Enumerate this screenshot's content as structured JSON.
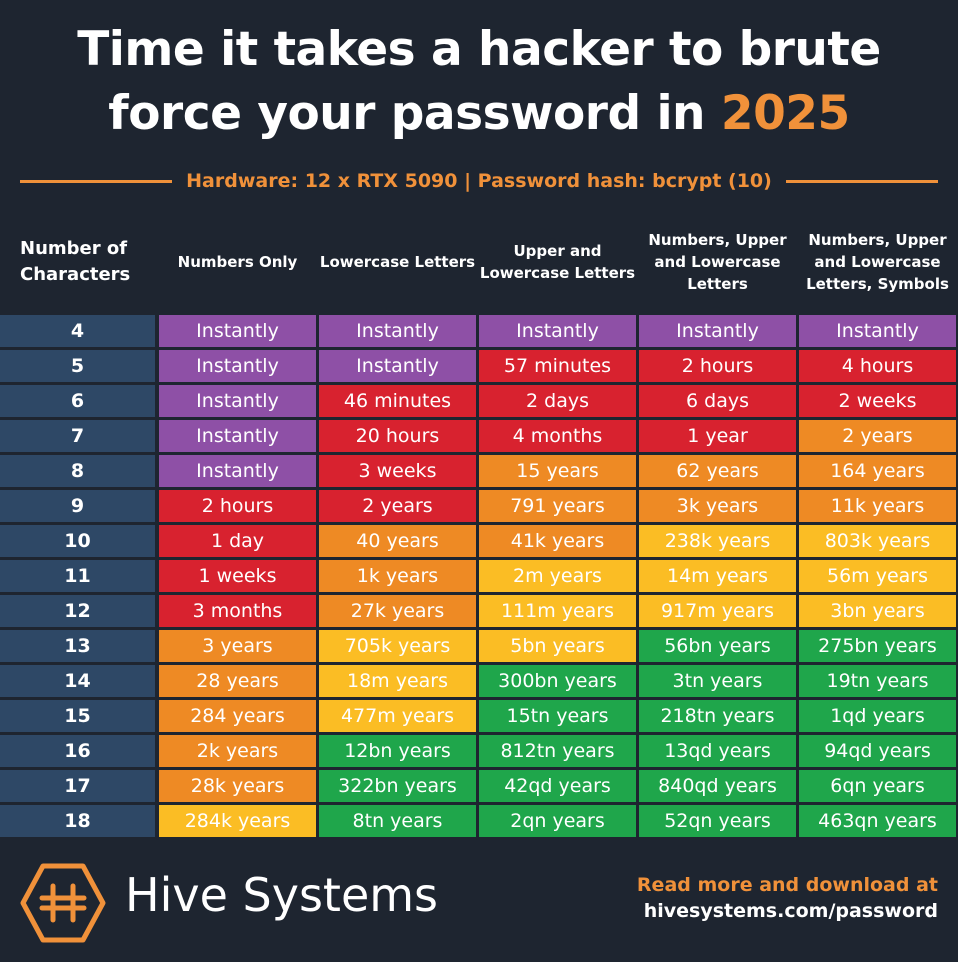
{
  "header": {
    "title": "Time it takes a hacker to brute force your password in",
    "title_highlight": "2025",
    "subtitle": "Hardware: 12 x RTX 5090 | Password hash: bcrypt (10)"
  },
  "table": {
    "columns": [
      "Number of Characters",
      "Numbers Only",
      "Lowercase Letters",
      "Upper and Lowercase Letters",
      "Numbers, Upper and Lowercase Letters",
      "Numbers, Upper and Lowercase Letters, Symbols"
    ],
    "rows": [
      {
        "label": "4",
        "cells": [
          "Instantly",
          "Instantly",
          "Instantly",
          "Instantly",
          "Instantly"
        ],
        "colors": [
          "#8e50a6",
          "#8e50a6",
          "#8e50a6",
          "#8e50a6",
          "#8e50a6"
        ]
      },
      {
        "label": "5",
        "cells": [
          "Instantly",
          "Instantly",
          "57 minutes",
          "2 hours",
          "4 hours"
        ],
        "colors": [
          "#8e50a6",
          "#8e50a6",
          "#d8222f",
          "#d8222f",
          "#d8222f"
        ]
      },
      {
        "label": "6",
        "cells": [
          "Instantly",
          "46 minutes",
          "2 days",
          "6 days",
          "2 weeks"
        ],
        "colors": [
          "#8e50a6",
          "#d8222f",
          "#d8222f",
          "#d8222f",
          "#d8222f"
        ]
      },
      {
        "label": "7",
        "cells": [
          "Instantly",
          "20 hours",
          "4 months",
          "1 year",
          "2 years"
        ],
        "colors": [
          "#8e50a6",
          "#d8222f",
          "#d8222f",
          "#d8222f",
          "#ee8a24"
        ]
      },
      {
        "label": "8",
        "cells": [
          "Instantly",
          "3 weeks",
          "15 years",
          "62 years",
          "164 years"
        ],
        "colors": [
          "#8e50a6",
          "#d8222f",
          "#ee8a24",
          "#ee8a24",
          "#ee8a24"
        ]
      },
      {
        "label": "9",
        "cells": [
          "2 hours",
          "2 years",
          "791 years",
          "3k years",
          "11k years"
        ],
        "colors": [
          "#d8222f",
          "#d8222f",
          "#ee8a24",
          "#ee8a24",
          "#ee8a24"
        ]
      },
      {
        "label": "10",
        "cells": [
          "1 day",
          "40 years",
          "41k years",
          "238k years",
          "803k years"
        ],
        "colors": [
          "#d8222f",
          "#ee8a24",
          "#ee8a24",
          "#fbbd24",
          "#fbbd24"
        ]
      },
      {
        "label": "11",
        "cells": [
          "1 weeks",
          "1k years",
          "2m years",
          "14m years",
          "56m years"
        ],
        "colors": [
          "#d8222f",
          "#ee8a24",
          "#fbbd24",
          "#fbbd24",
          "#fbbd24"
        ]
      },
      {
        "label": "12",
        "cells": [
          "3 months",
          "27k years",
          "111m years",
          "917m years",
          "3bn years"
        ],
        "colors": [
          "#d8222f",
          "#ee8a24",
          "#fbbd24",
          "#fbbd24",
          "#fbbd24"
        ]
      },
      {
        "label": "13",
        "cells": [
          "3 years",
          "705k years",
          "5bn years",
          "56bn years",
          "275bn years"
        ],
        "colors": [
          "#ee8a24",
          "#fbbd24",
          "#fbbd24",
          "#1fa64b",
          "#1fa64b"
        ]
      },
      {
        "label": "14",
        "cells": [
          "28 years",
          "18m years",
          "300bn years",
          "3tn years",
          "19tn years"
        ],
        "colors": [
          "#ee8a24",
          "#fbbd24",
          "#1fa64b",
          "#1fa64b",
          "#1fa64b"
        ]
      },
      {
        "label": "15",
        "cells": [
          "284 years",
          "477m years",
          "15tn years",
          "218tn years",
          "1qd years"
        ],
        "colors": [
          "#ee8a24",
          "#fbbd24",
          "#1fa64b",
          "#1fa64b",
          "#1fa64b"
        ]
      },
      {
        "label": "16",
        "cells": [
          "2k years",
          "12bn years",
          "812tn years",
          "13qd years",
          "94qd years"
        ],
        "colors": [
          "#ee8a24",
          "#1fa64b",
          "#1fa64b",
          "#1fa64b",
          "#1fa64b"
        ]
      },
      {
        "label": "17",
        "cells": [
          "28k years",
          "322bn years",
          "42qd years",
          "840qd years",
          "6qn years"
        ],
        "colors": [
          "#ee8a24",
          "#1fa64b",
          "#1fa64b",
          "#1fa64b",
          "#1fa64b"
        ]
      },
      {
        "label": "18",
        "cells": [
          "284k years",
          "8tn years",
          "2qn years",
          "52qn years",
          "463qn years"
        ],
        "colors": [
          "#fbbd24",
          "#1fa64b",
          "#1fa64b",
          "#1fa64b",
          "#1fa64b"
        ]
      }
    ]
  },
  "footer": {
    "brand": "Hive Systems",
    "note": "Read more and download at",
    "url": "hivesystems.com/password"
  }
}
